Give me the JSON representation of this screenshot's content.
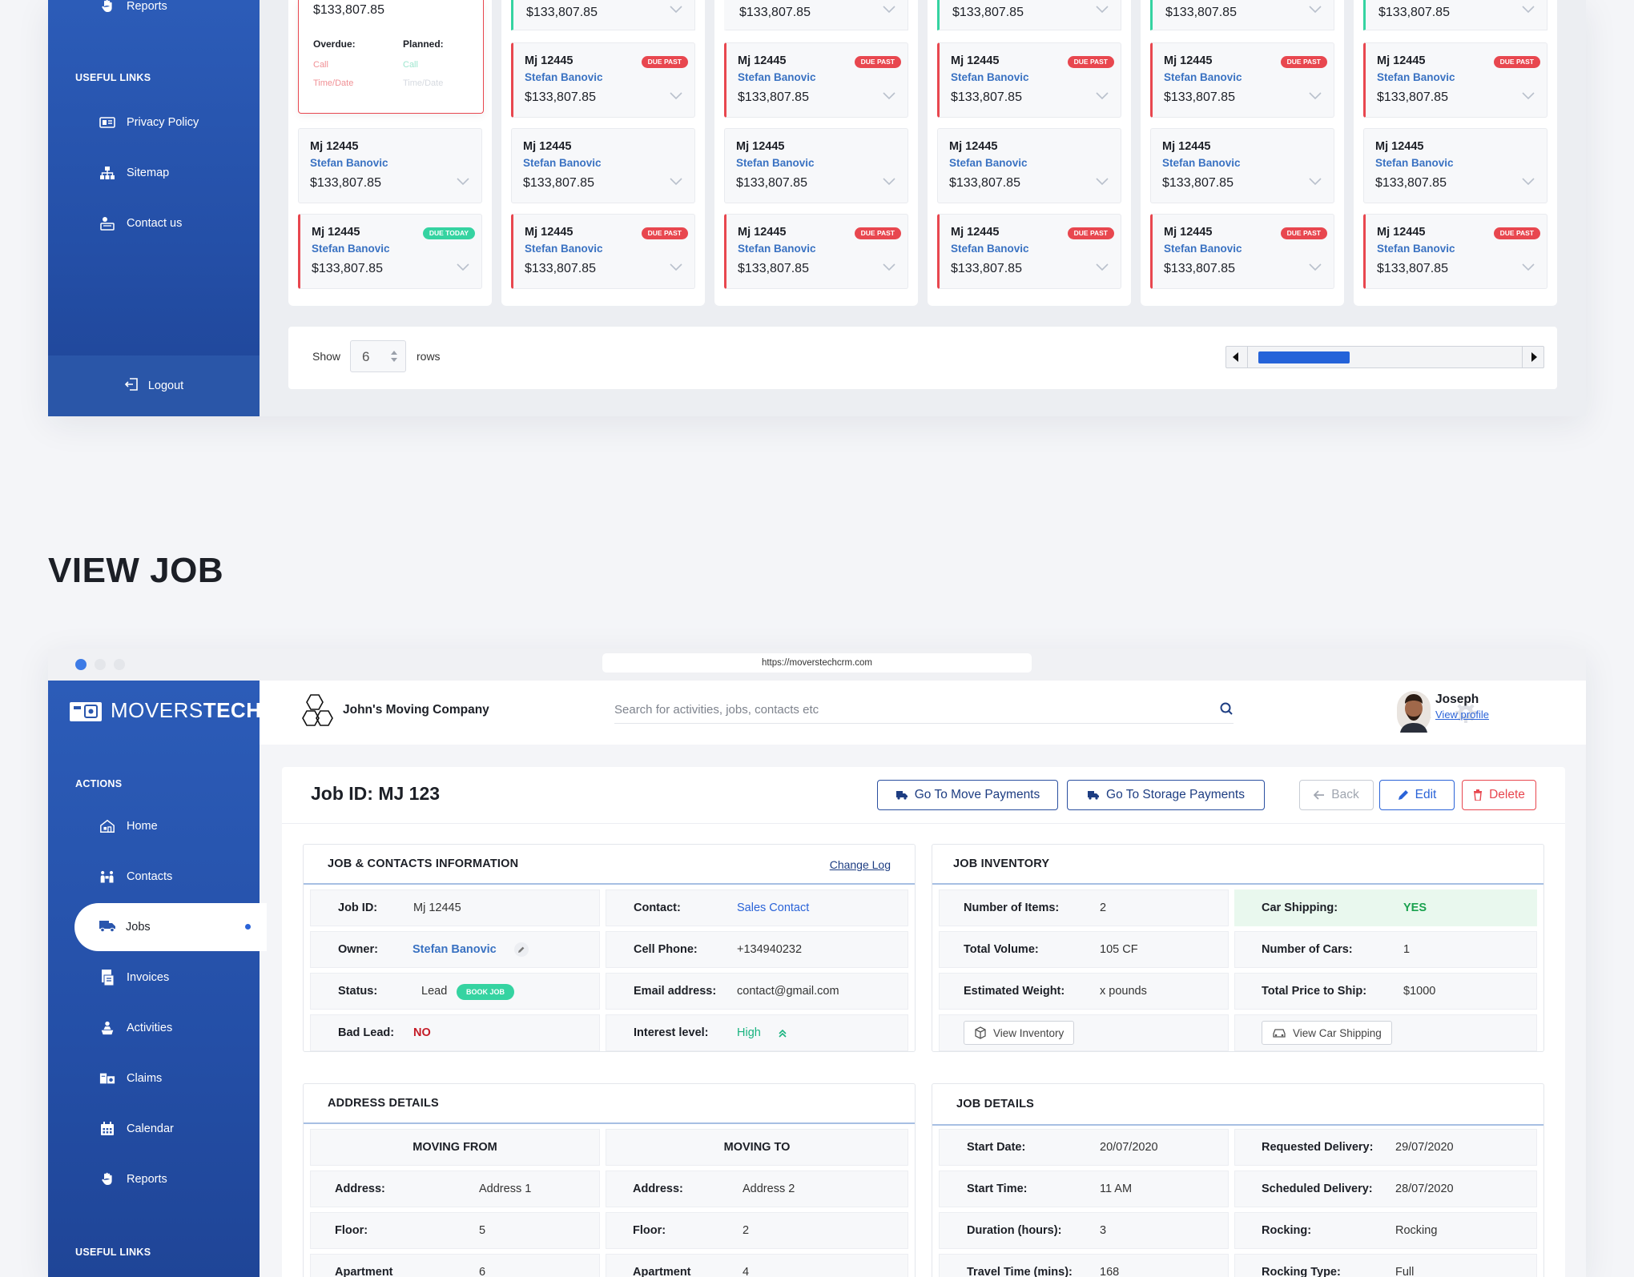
{
  "top_window": {
    "sidebar": {
      "reports_label": "Reports",
      "useful_links_heading": "USEFUL LINKS",
      "links": [
        {
          "label": "Privacy Policy",
          "icon": "privacy-icon"
        },
        {
          "label": "Sitemap",
          "icon": "sitemap-icon"
        },
        {
          "label": "Contact us",
          "icon": "contact-icon"
        }
      ],
      "logout_label": "Logout"
    },
    "popup": {
      "amount": "$133,807.85",
      "overdue_label": "Overdue:",
      "planned_label": "Planned:",
      "overdue_call": "Call",
      "overdue_time": "Time/Date",
      "planned_call": "Call",
      "planned_time": "Time/Date"
    },
    "card": {
      "job_id": "Mj 12445",
      "contact": "Stefan Banovic",
      "amount": "$133,807.85",
      "badge_past": "DUE PAST",
      "badge_today": "DUE TODAY"
    },
    "pager": {
      "show_label": "Show",
      "rows_value": "6",
      "rows_label": "rows"
    }
  },
  "heading": "VIEW JOB",
  "browser": {
    "url": "https://moverstechcrm.com"
  },
  "sidebar": {
    "logo_prefix": "MOVERS",
    "logo_suffix": "TECH",
    "actions_heading": "ACTIONS",
    "items": [
      {
        "label": "Home",
        "icon": "home-icon"
      },
      {
        "label": "Contacts",
        "icon": "contacts-icon"
      },
      {
        "label": "Jobs",
        "icon": "truck-icon"
      },
      {
        "label": "Invoices",
        "icon": "invoice-icon"
      },
      {
        "label": "Activities",
        "icon": "activities-icon"
      },
      {
        "label": "Claims",
        "icon": "claims-icon"
      },
      {
        "label": "Calendar",
        "icon": "calendar-icon"
      },
      {
        "label": "Reports",
        "icon": "hand-icon"
      }
    ],
    "useful_links_heading": "USEFUL LINKS"
  },
  "header": {
    "company_name": "John's Moving Company",
    "search_placeholder": "Search for activities, jobs, contacts etc",
    "user_name": "Joseph",
    "view_profile": "View profile"
  },
  "job": {
    "title": "Job ID: MJ 123",
    "buttons": {
      "move_payments": "Go To Move Payments",
      "storage_payments": "Go To Storage Payments",
      "back": "Back",
      "edit": "Edit",
      "delete": "Delete"
    },
    "contacts_section": {
      "title": "JOB & CONTACTS INFORMATION",
      "change_log": "Change Log",
      "job_id_label": "Job ID:",
      "job_id": "Mj 12445",
      "owner_label": "Owner:",
      "owner": "Stefan Banovic",
      "status_label": "Status:",
      "status": "Lead",
      "book_job": "BOOK JOB",
      "bad_lead_label": "Bad Lead:",
      "bad_lead": "NO",
      "contact_label": "Contact:",
      "contact": "Sales Contact",
      "cell_label": "Cell Phone:",
      "cell": "+134940232",
      "email_label": "Email address:",
      "email": "contact@gmail.com",
      "interest_label": "Interest level:",
      "interest": "High"
    },
    "inventory_section": {
      "title": "JOB INVENTORY",
      "items_label": "Number of Items:",
      "items": "2",
      "volume_label": "Total Volume:",
      "volume": "105 CF",
      "weight_label": "Estimated Weight:",
      "weight": "x pounds",
      "view_inventory": "View Inventory",
      "car_label": "Car Shipping:",
      "car": "YES",
      "cars_label": "Number of Cars:",
      "cars": "1",
      "price_label": "Total Price to Ship:",
      "price": "$1000",
      "view_car": "View Car Shipping"
    },
    "address_section": {
      "title": "ADDRESS DETAILS",
      "from_heading": "MOVING FROM",
      "to_heading": "MOVING TO",
      "address_label": "Address:",
      "from_address": "Address 1",
      "to_address": "Address 2",
      "floor_label": "Floor:",
      "from_floor": "5",
      "to_floor": "2",
      "apartment_label": "Apartment",
      "from_apartment": "6",
      "to_apartment": "4"
    },
    "details_section": {
      "title": "JOB DETAILS",
      "start_date_label": "Start Date:",
      "start_date": "20/07/2020",
      "start_time_label": "Start Time:",
      "start_time": "11 AM",
      "duration_label": "Duration (hours):",
      "duration": "3",
      "travel_label": "Travel Time (mins):",
      "travel": "168",
      "req_delivery_label": "Requested Delivery:",
      "req_delivery": "29/07/2020",
      "sch_delivery_label": "Scheduled Delivery:",
      "sch_delivery": "28/07/2020",
      "rocking_label": "Rocking:",
      "rocking": "Rocking",
      "rocking_type_label": "Rocking Type:",
      "rocking_type": "Full"
    }
  },
  "colors": {
    "sidebar_blue": "#2a56ad",
    "accent_blue": "#2a63d8",
    "due_past": "#e8474f",
    "due_today": "#35d3a1"
  }
}
